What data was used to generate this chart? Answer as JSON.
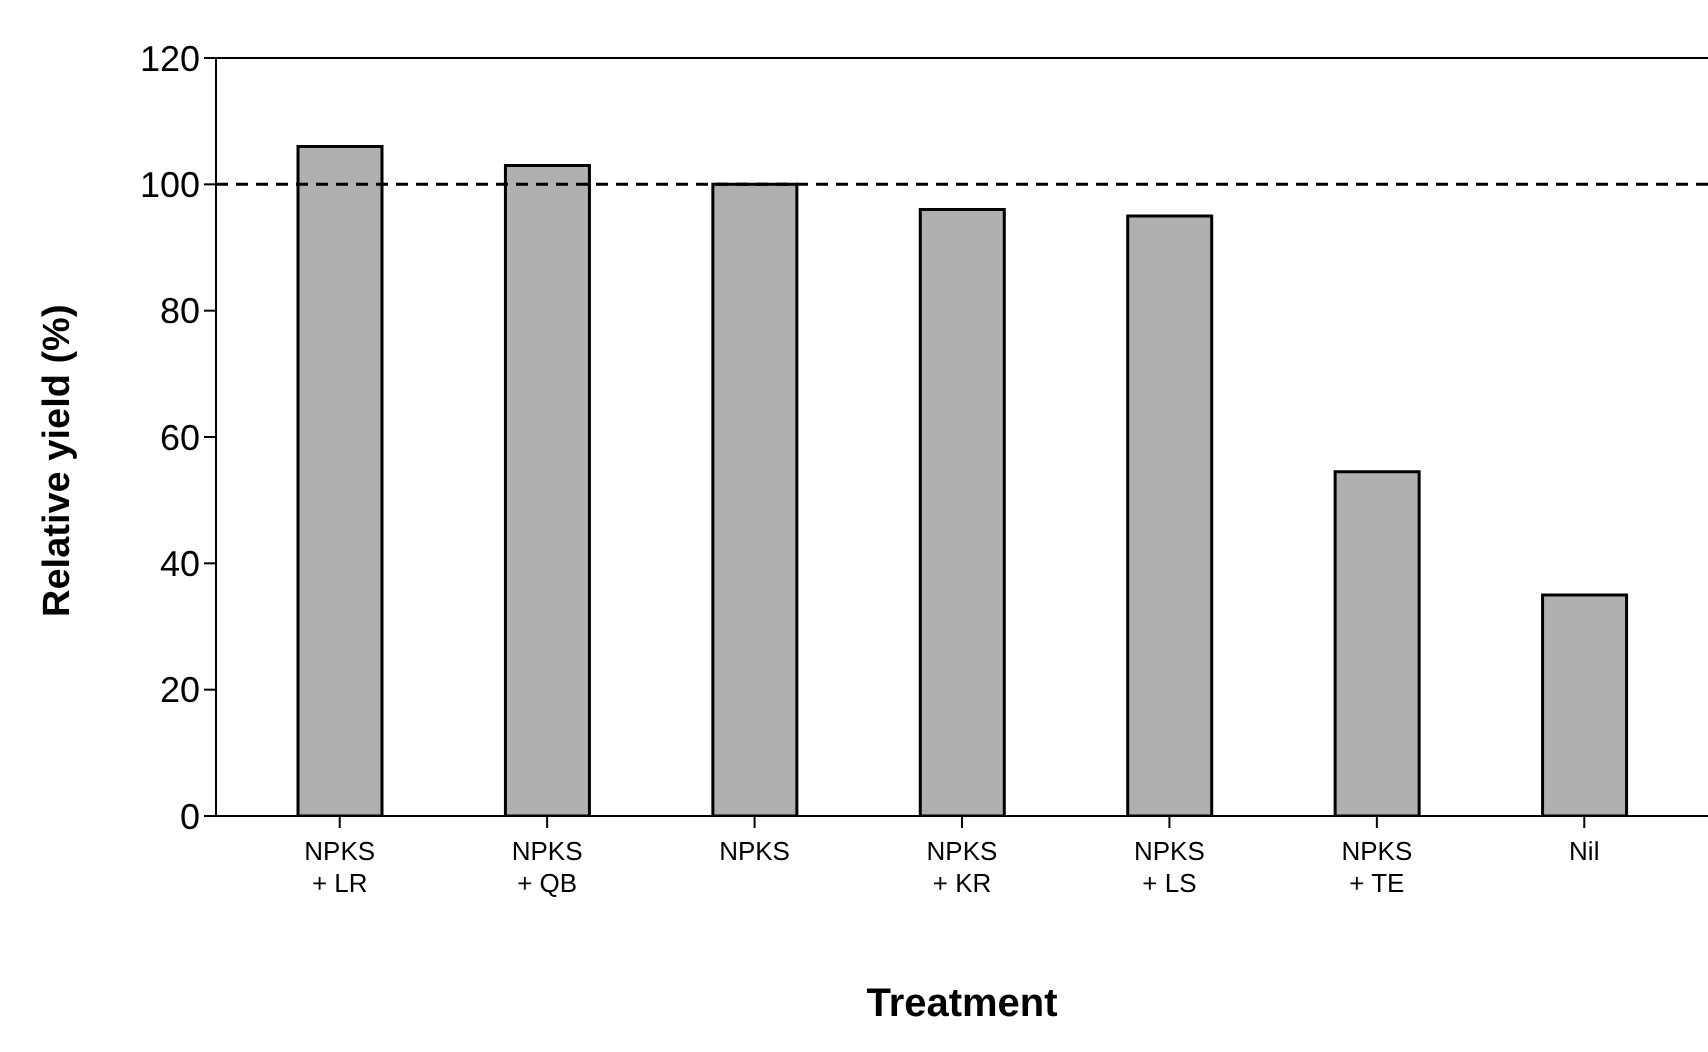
{
  "chart_data": {
    "type": "bar",
    "xlabel": "Treatment",
    "ylabel": "Relative yield (%)",
    "categories": [
      "NPKS\n+ LR",
      "NPKS\n+ QB",
      "NPKS",
      "NPKS\n+ KR",
      "NPKS\n+ LS",
      "NPKS\n+ TE",
      "Nil"
    ],
    "values": [
      106,
      103,
      100,
      96,
      95,
      54.5,
      35
    ],
    "color": "#b0b0b0",
    "ylim": [
      0,
      120
    ],
    "yticks": [
      0,
      20,
      40,
      60,
      80,
      100,
      120
    ],
    "grid": false,
    "legend": false,
    "ref_lines": [
      {
        "axis": "y",
        "value": 100,
        "line_style": "dashed",
        "color": "#000000"
      }
    ]
  }
}
